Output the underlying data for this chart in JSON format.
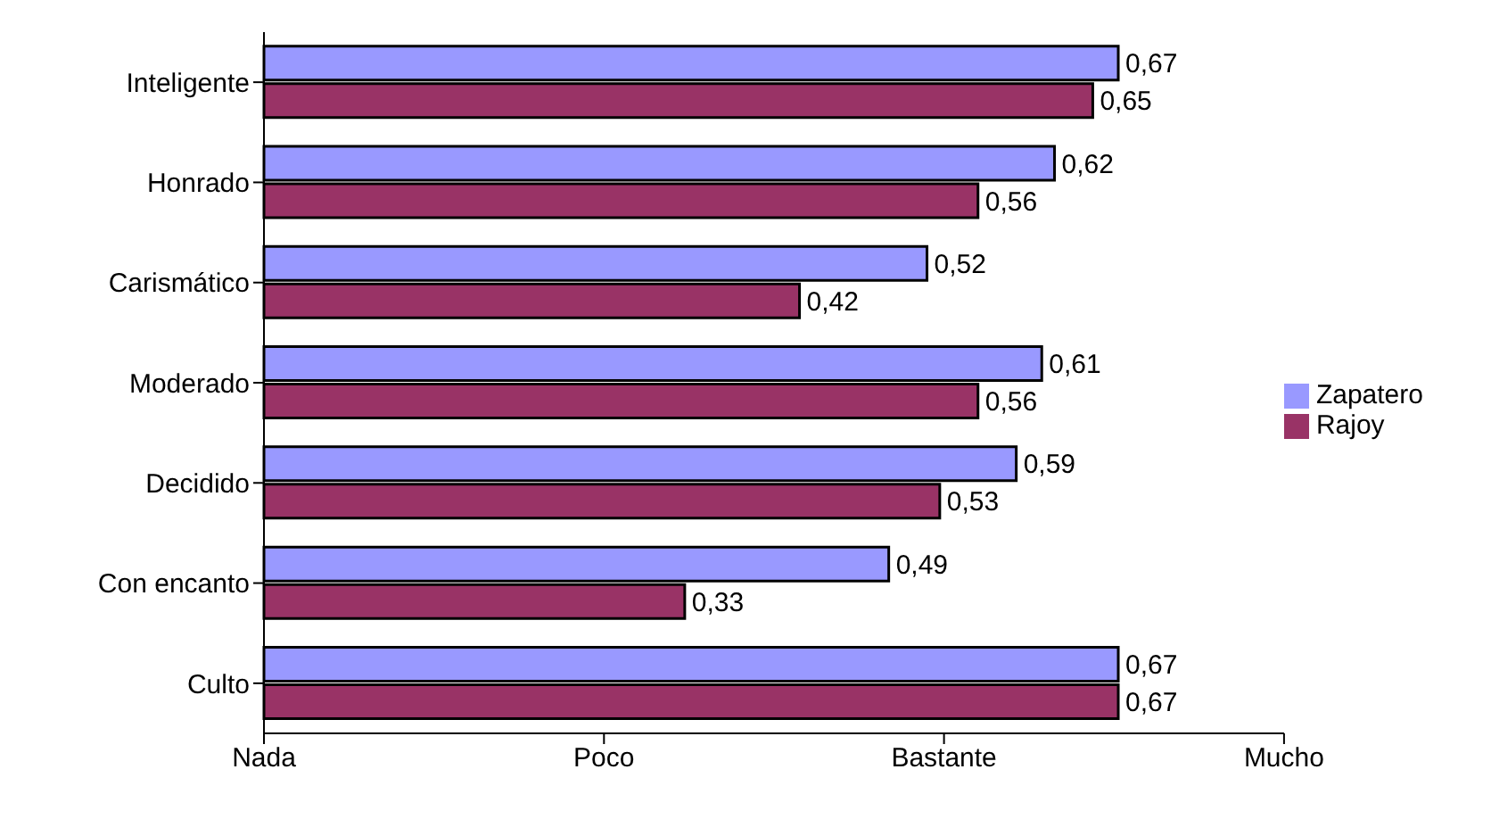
{
  "chart_data": {
    "type": "bar",
    "orientation": "horizontal",
    "categories": [
      "Inteligente",
      "Honrado",
      "Carismático",
      "Moderado",
      "Decidido",
      "Con encanto",
      "Culto"
    ],
    "series": [
      {
        "name": "Zapatero",
        "color": "#9999ff",
        "values": [
          0.67,
          0.62,
          0.52,
          0.61,
          0.59,
          0.49,
          0.67
        ],
        "value_labels": [
          "0,67",
          "0,62",
          "0,52",
          "0,61",
          "0,59",
          "0,49",
          "0,67"
        ]
      },
      {
        "name": "Rajoy",
        "color": "#993366",
        "values": [
          0.65,
          0.56,
          0.42,
          0.56,
          0.53,
          0.33,
          0.67
        ],
        "value_labels": [
          "0,65",
          "0,56",
          "0,42",
          "0,56",
          "0,53",
          "0,33",
          "0,67"
        ]
      }
    ],
    "annotations": [
      "Nada",
      "Poco",
      "Bastante",
      "Mucho"
    ],
    "legend": "right",
    "grid": false
  }
}
